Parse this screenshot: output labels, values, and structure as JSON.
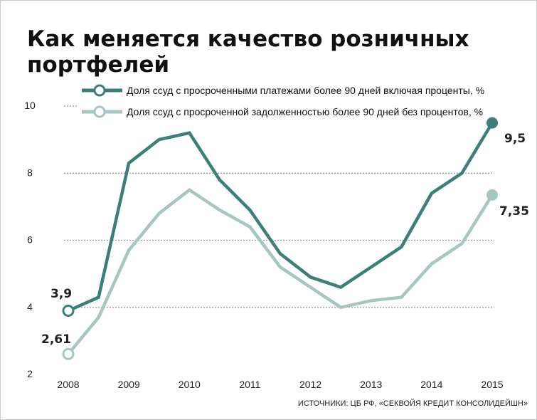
{
  "title": {
    "line1": "Как меняется качество розничных",
    "line2": "портфелей"
  },
  "legend": [
    {
      "label": "Доля ссуд с просроченными платежами  более 90 дней включая проценты, %"
    },
    {
      "label": "Доля ссуд с просроченной задолженностью более 90 дней без процентов, %"
    }
  ],
  "source": "ИСТОЧНИКИ: ЦБ РФ, «СЕКВОЙЯ КРЕДИТ КОНСОЛИДЕЙШН»",
  "colors": {
    "series1": "#3b7f78",
    "series2": "#a6c6c2",
    "grid": "#999999",
    "frame": "#cccccc"
  },
  "chart_data": {
    "type": "line",
    "x_tick_labels": [
      "2008",
      "2009",
      "2010",
      "2011",
      "2012",
      "2013",
      "2014",
      "2015"
    ],
    "y_tick_labels": [
      "2",
      "4",
      "6",
      "8",
      "10"
    ],
    "ylim": [
      2,
      10.5
    ],
    "xlim": [
      2008,
      2015
    ],
    "grid": "horizontal-dotted",
    "legend_position": "top",
    "series": [
      {
        "name": "Доля ссуд с просроченными платежами  более 90 дней включая проценты, %",
        "x": [
          2008.0,
          2008.5,
          2009.0,
          2009.5,
          2010.0,
          2010.5,
          2011.0,
          2011.5,
          2012.0,
          2012.5,
          2013.0,
          2013.5,
          2014.0,
          2014.5,
          2015.0
        ],
        "values": [
          3.9,
          4.3,
          8.3,
          9.0,
          9.2,
          7.8,
          6.9,
          5.6,
          4.9,
          4.6,
          5.2,
          5.8,
          7.4,
          8.0,
          9.5
        ],
        "start_label": "3,9",
        "end_label": "9,5"
      },
      {
        "name": "Доля ссуд с просроченной задолженностью более 90 дней без процентов, %",
        "x": [
          2008.0,
          2008.5,
          2009.0,
          2009.5,
          2010.0,
          2010.5,
          2011.0,
          2011.5,
          2012.0,
          2012.5,
          2013.0,
          2013.5,
          2014.0,
          2014.5,
          2015.0
        ],
        "values": [
          2.61,
          3.7,
          5.7,
          6.8,
          7.5,
          6.9,
          6.4,
          5.2,
          4.6,
          4.0,
          4.2,
          4.3,
          5.3,
          5.9,
          7.35
        ],
        "start_label": "2,61",
        "end_label": "7,35"
      }
    ]
  }
}
